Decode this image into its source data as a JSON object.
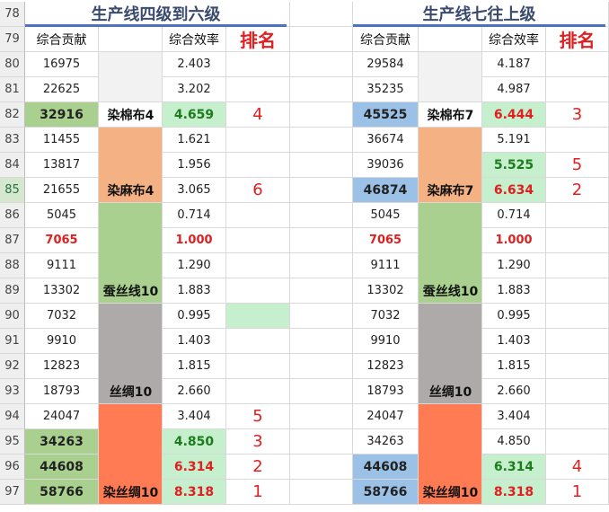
{
  "row_numbers": [
    78,
    79,
    80,
    81,
    82,
    83,
    84,
    85,
    86,
    87,
    88,
    89,
    90,
    91,
    92,
    93,
    94,
    95,
    96,
    97
  ],
  "left": {
    "title": "生产线四级到六级",
    "headers": [
      "综合贡献",
      null,
      "综合效率",
      "排名"
    ],
    "rows": [
      [
        16975,
        null,
        "2.403",
        null
      ],
      [
        22625,
        null,
        "3.202",
        null
      ],
      [
        32916,
        "染棉布4",
        "4.659",
        4
      ],
      [
        11455,
        null,
        "1.621",
        null
      ],
      [
        13817,
        null,
        "1.956",
        null
      ],
      [
        21655,
        "染麻布4",
        "3.065",
        6
      ],
      [
        5045,
        null,
        "0.714",
        null
      ],
      [
        7065,
        null,
        "1.000",
        null
      ],
      [
        9111,
        null,
        "1.290",
        null
      ],
      [
        13302,
        "蚕丝线10",
        "1.883",
        null
      ],
      [
        7032,
        null,
        "0.995",
        null
      ],
      [
        9910,
        null,
        "1.403",
        null
      ],
      [
        12823,
        null,
        "1.815",
        null
      ],
      [
        18793,
        "丝绸10",
        "2.660",
        null
      ],
      [
        24047,
        null,
        "3.404",
        5
      ],
      [
        34263,
        null,
        "4.850",
        3
      ],
      [
        44608,
        null,
        "6.314",
        2
      ],
      [
        58766,
        "染丝绸10",
        "8.318",
        1
      ]
    ]
  },
  "right": {
    "title": "生产线七往上级",
    "headers": [
      "综合贡献",
      null,
      "综合效率",
      "排名"
    ],
    "rows": [
      [
        29584,
        null,
        "4.187",
        null
      ],
      [
        35235,
        null,
        "4.987",
        null
      ],
      [
        45525,
        "染棉布7",
        "6.444",
        3
      ],
      [
        36674,
        null,
        "5.191",
        null
      ],
      [
        39036,
        null,
        "5.525",
        5
      ],
      [
        46874,
        "染麻布7",
        "6.634",
        2
      ],
      [
        5045,
        null,
        "0.714",
        null
      ],
      [
        7065,
        null,
        "1.000",
        null
      ],
      [
        9111,
        null,
        "1.290",
        null
      ],
      [
        13302,
        "蚕丝线10",
        "1.883",
        null
      ],
      [
        7032,
        null,
        "0.995",
        null
      ],
      [
        9910,
        null,
        "1.403",
        null
      ],
      [
        12823,
        null,
        "1.815",
        null
      ],
      [
        18793,
        "丝绸10",
        "2.660",
        null
      ],
      [
        24047,
        null,
        "3.404",
        null
      ],
      [
        34263,
        null,
        "4.850",
        null
      ],
      [
        44608,
        null,
        "6.314",
        4
      ],
      [
        58766,
        "染丝绸10",
        "8.318",
        1
      ]
    ]
  }
}
